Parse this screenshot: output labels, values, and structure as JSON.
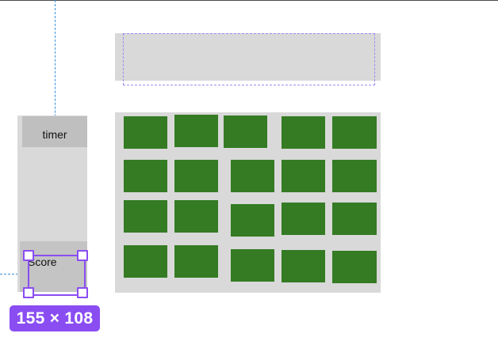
{
  "sidebar": {
    "timer_label": "timer",
    "score_label": "Score"
  },
  "selection": {
    "dimensions_label": "155 × 108"
  },
  "grid": {
    "rows": 4,
    "columns": 5,
    "cell_color": "#347b23"
  },
  "colors": {
    "selection_accent": "#8a4df2",
    "guide_line": "#3b8fd9",
    "frame_gray": "#d9d9d9"
  }
}
